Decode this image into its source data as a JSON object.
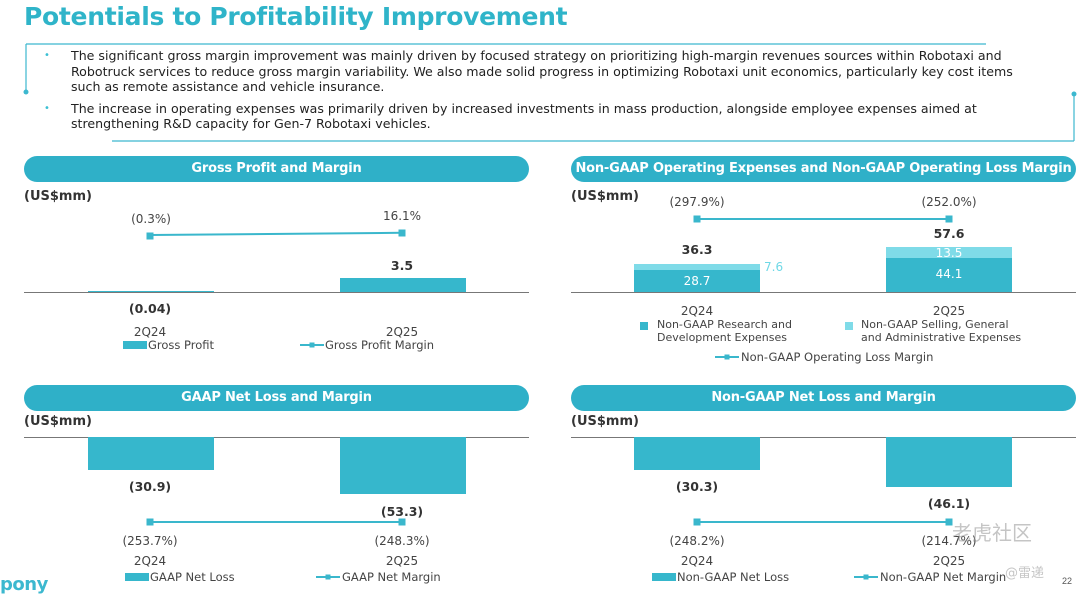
{
  "title": "Potentials to Profitability Improvement",
  "bullets": [
    "The significant gross margin improvement was mainly driven by focused strategy on prioritizing high-margin revenues sources within Robotaxi and Robotruck services to reduce gross margin variability. We also made solid progress in optimizing Robotaxi unit economics, particularly key cost items such as remote assistance and vehicle insurance.",
    "The increase in operating expenses was primarily driven by increased investments in mass production, alongside employee expenses aimed at strengthening R&D capacity for Gen-7 Robotaxi vehicles."
  ],
  "colors": {
    "accent": "#2fb4c9",
    "bar_dark": "#36b7cc",
    "bar_light": "#7fdbe8"
  },
  "chart_data": [
    {
      "type": "bar",
      "title": "Gross Profit and Margin",
      "unit": "(US$mm)",
      "categories": [
        "2Q24",
        "2Q25"
      ],
      "series": [
        {
          "name": "Gross Profit",
          "values": [
            -0.04,
            3.5
          ],
          "labels": [
            "(0.04)",
            "3.5"
          ]
        },
        {
          "name": "Gross Profit Margin",
          "type": "line",
          "values": [
            -0.3,
            16.1
          ],
          "labels": [
            "(0.3%)",
            "16.1%"
          ]
        }
      ]
    },
    {
      "type": "bar",
      "title": "Non-GAAP Operating Expenses and Non-GAAP Operating Loss Margin",
      "unit": "(US$mm)",
      "categories": [
        "2Q24",
        "2Q25"
      ],
      "stacked": true,
      "totals": [
        "36.3",
        "57.6"
      ],
      "series": [
        {
          "name": "Non-GAAP Research and Development Expenses",
          "values": [
            28.7,
            44.1
          ],
          "labels": [
            "28.7",
            "44.1"
          ]
        },
        {
          "name": "Non-GAAP Selling, General and Administrative Expenses",
          "values": [
            7.6,
            13.5
          ],
          "labels": [
            "7.6",
            "13.5"
          ]
        },
        {
          "name": "Non-GAAP Operating Loss Margin",
          "type": "line",
          "values": [
            -297.9,
            -252.0
          ],
          "labels": [
            "(297.9%)",
            "(252.0%)"
          ]
        }
      ]
    },
    {
      "type": "bar",
      "title": "GAAP Net Loss and Margin",
      "unit": "(US$mm)",
      "categories": [
        "2Q24",
        "2Q25"
      ],
      "series": [
        {
          "name": "GAAP Net Loss",
          "values": [
            -30.9,
            -53.3
          ],
          "labels": [
            "(30.9)",
            "(53.3)"
          ]
        },
        {
          "name": "GAAP Net Margin",
          "type": "line",
          "values": [
            -253.7,
            -248.3
          ],
          "labels": [
            "(253.7%)",
            "(248.3%)"
          ]
        }
      ]
    },
    {
      "type": "bar",
      "title": "Non-GAAP Net Loss and Margin",
      "unit": "(US$mm)",
      "categories": [
        "2Q24",
        "2Q25"
      ],
      "series": [
        {
          "name": "Non-GAAP Net Loss",
          "values": [
            -30.3,
            -46.1
          ],
          "labels": [
            "(30.3)",
            "(46.1)"
          ]
        },
        {
          "name": "Non-GAAP Net Margin",
          "type": "line",
          "values": [
            -248.2,
            -214.7
          ],
          "labels": [
            "(248.2%)",
            "(214.7%)"
          ]
        }
      ]
    }
  ],
  "footer": {
    "logo": "pony",
    "page": "22"
  },
  "watermark": {
    "text1": "老虎社区",
    "text2": "@雷递"
  }
}
